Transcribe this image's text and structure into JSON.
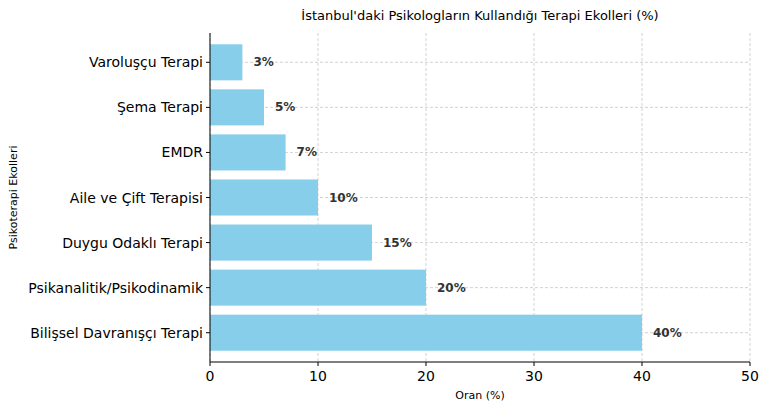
{
  "chart_data": {
    "type": "bar",
    "orientation": "horizontal",
    "title": "İstanbul'daki Psikologların Kullandığı Terapi Ekolleri (%)",
    "x_label": "Oran (%)",
    "y_label": "Psikoterapi Ekolleri",
    "categories": [
      "Bilişsel Davranışçı Terapi",
      "Psikanalitik/Psikodinamik",
      "Duygu Odaklı Terapi",
      "Aile ve Çift Terapisi",
      "EMDR",
      "Şema Terapi",
      "Varoluşçu Terapi"
    ],
    "values": [
      40,
      20,
      15,
      10,
      7,
      5,
      3
    ],
    "value_labels": [
      "40%",
      "20%",
      "15%",
      "10%",
      "7%",
      "5%",
      "3%"
    ],
    "color": "#87ceeb",
    "xlim": [
      0,
      50
    ],
    "xticks": [
      0,
      10,
      20,
      30,
      40,
      50
    ],
    "grid": true,
    "data_labels": true
  }
}
